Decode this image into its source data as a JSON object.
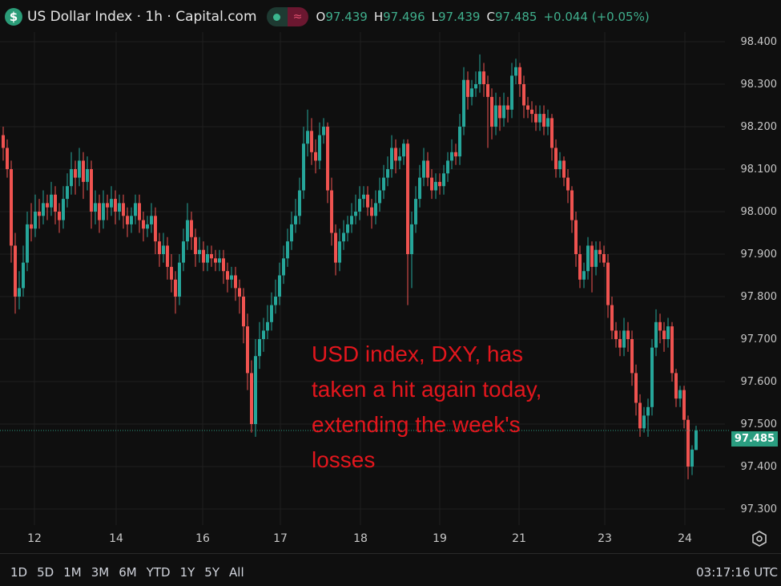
{
  "header": {
    "symbol_icon": "dollar-icon",
    "title": "US Dollar Index · 1h · Capital.com",
    "ohlc": {
      "o_label": "O",
      "o": "97.439",
      "h_label": "H",
      "h": "97.496",
      "l_label": "L",
      "l": "97.439",
      "c_label": "C",
      "c": "97.485",
      "change": "+0.044 (+0.05%)"
    }
  },
  "annotation": {
    "lines": [
      "USD index, DXY, has",
      "taken a hit again today,",
      "extending the week's",
      "losses"
    ]
  },
  "time_ranges": [
    "1D",
    "5D",
    "1M",
    "3M",
    "6M",
    "YTD",
    "1Y",
    "5Y",
    "All"
  ],
  "clock": "03:17:16 UTC",
  "colors": {
    "up": "#26a69a",
    "down": "#ef5350",
    "background": "#0f0f0f",
    "grid": "#1f1f1f",
    "annotation": "#e3161d"
  },
  "chart_data": {
    "type": "candlestick",
    "title": "US Dollar Index · 1h · Capital.com",
    "ylim": [
      97.25,
      98.45
    ],
    "y_ticks": [
      "98.400",
      "98.300",
      "98.200",
      "98.100",
      "98.000",
      "97.900",
      "97.800",
      "97.700",
      "97.600",
      "97.500",
      "97.400",
      "97.300"
    ],
    "x_ticks": [
      "12",
      "14",
      "16",
      "17",
      "18",
      "19",
      "21",
      "23",
      "24"
    ],
    "last_price": "97.485",
    "grid": true,
    "candles": [
      [
        98.18,
        98.2,
        98.12,
        98.15
      ],
      [
        98.15,
        98.17,
        98.08,
        98.1
      ],
      [
        98.1,
        98.12,
        97.88,
        97.92
      ],
      [
        97.92,
        97.95,
        97.76,
        97.8
      ],
      [
        97.8,
        97.86,
        97.77,
        97.82
      ],
      [
        97.82,
        97.92,
        97.8,
        97.88
      ],
      [
        97.88,
        98.0,
        97.86,
        97.97
      ],
      [
        97.97,
        98.02,
        97.93,
        97.96
      ],
      [
        97.96,
        98.04,
        97.94,
        98.0
      ],
      [
        98.0,
        98.03,
        97.96,
        97.99
      ],
      [
        97.99,
        98.05,
        97.97,
        98.02
      ],
      [
        98.02,
        98.04,
        97.98,
        98.01
      ],
      [
        98.01,
        98.07,
        97.99,
        98.04
      ],
      [
        98.04,
        98.06,
        97.97,
        98.0
      ],
      [
        98.0,
        98.02,
        97.95,
        97.98
      ],
      [
        97.98,
        98.06,
        97.96,
        98.03
      ],
      [
        98.03,
        98.09,
        98.01,
        98.06
      ],
      [
        98.06,
        98.14,
        98.04,
        98.1
      ],
      [
        98.1,
        98.12,
        98.04,
        98.08
      ],
      [
        98.08,
        98.15,
        98.06,
        98.12
      ],
      [
        98.12,
        98.14,
        98.03,
        98.07
      ],
      [
        98.07,
        98.13,
        98.05,
        98.1
      ],
      [
        98.1,
        98.12,
        97.96,
        98.0
      ],
      [
        98.0,
        98.05,
        97.97,
        98.02
      ],
      [
        98.02,
        98.04,
        97.95,
        97.98
      ],
      [
        97.98,
        98.05,
        97.96,
        98.02
      ],
      [
        98.02,
        98.04,
        97.98,
        98.01
      ],
      [
        98.01,
        98.06,
        97.99,
        98.03
      ],
      [
        98.03,
        98.05,
        97.97,
        98.0
      ],
      [
        98.0,
        98.04,
        97.98,
        98.02
      ],
      [
        98.02,
        98.04,
        97.96,
        97.99
      ],
      [
        97.99,
        98.01,
        97.94,
        97.97
      ],
      [
        97.97,
        98.01,
        97.95,
        97.99
      ],
      [
        97.99,
        98.04,
        97.97,
        98.02
      ],
      [
        98.02,
        98.04,
        97.95,
        97.98
      ],
      [
        97.98,
        98.0,
        97.93,
        97.96
      ],
      [
        97.96,
        97.99,
        97.94,
        97.97
      ],
      [
        97.97,
        98.02,
        97.95,
        97.99
      ],
      [
        97.99,
        98.01,
        97.9,
        97.93
      ],
      [
        97.93,
        97.95,
        97.87,
        97.9
      ],
      [
        97.9,
        97.95,
        97.88,
        97.92
      ],
      [
        97.92,
        97.94,
        97.84,
        97.87
      ],
      [
        97.87,
        97.9,
        97.81,
        97.84
      ],
      [
        97.84,
        97.86,
        97.76,
        97.8
      ],
      [
        97.8,
        97.9,
        97.78,
        97.88
      ],
      [
        97.88,
        97.96,
        97.86,
        97.93
      ],
      [
        97.93,
        98.02,
        97.91,
        97.98
      ],
      [
        97.98,
        98.0,
        97.91,
        97.94
      ],
      [
        97.94,
        97.96,
        97.87,
        97.9
      ],
      [
        97.9,
        97.94,
        97.88,
        97.91
      ],
      [
        97.91,
        97.93,
        97.86,
        97.88
      ],
      [
        97.88,
        97.92,
        97.86,
        97.9
      ],
      [
        97.9,
        97.92,
        97.87,
        97.89
      ],
      [
        97.89,
        97.91,
        97.86,
        97.88
      ],
      [
        97.88,
        97.91,
        97.86,
        97.89
      ],
      [
        97.89,
        97.91,
        97.83,
        97.86
      ],
      [
        97.86,
        97.88,
        97.81,
        97.84
      ],
      [
        97.84,
        97.87,
        97.82,
        97.85
      ],
      [
        97.85,
        97.87,
        97.79,
        97.82
      ],
      [
        97.82,
        97.84,
        97.76,
        97.8
      ],
      [
        97.8,
        97.82,
        97.69,
        97.73
      ],
      [
        97.73,
        97.76,
        97.58,
        97.62
      ],
      [
        97.62,
        97.65,
        97.48,
        97.5
      ],
      [
        97.5,
        97.7,
        97.47,
        97.66
      ],
      [
        97.66,
        97.74,
        97.63,
        97.7
      ],
      [
        97.7,
        97.75,
        97.67,
        97.72
      ],
      [
        97.72,
        97.78,
        97.7,
        97.74
      ],
      [
        97.74,
        97.81,
        97.72,
        97.78
      ],
      [
        97.78,
        97.84,
        97.76,
        97.8
      ],
      [
        97.8,
        97.88,
        97.78,
        97.85
      ],
      [
        97.85,
        97.92,
        97.83,
        97.89
      ],
      [
        97.89,
        97.96,
        97.87,
        97.93
      ],
      [
        97.93,
        98.0,
        97.91,
        97.97
      ],
      [
        97.97,
        98.03,
        97.95,
        97.99
      ],
      [
        97.99,
        98.08,
        97.97,
        98.05
      ],
      [
        98.05,
        98.2,
        98.03,
        98.16
      ],
      [
        98.16,
        98.24,
        98.13,
        98.19
      ],
      [
        98.19,
        98.22,
        98.11,
        98.14
      ],
      [
        98.14,
        98.17,
        98.09,
        98.12
      ],
      [
        98.12,
        98.21,
        98.1,
        98.18
      ],
      [
        98.18,
        98.22,
        98.16,
        98.2
      ],
      [
        98.2,
        98.21,
        98.02,
        98.05
      ],
      [
        98.05,
        98.08,
        97.92,
        97.95
      ],
      [
        97.95,
        97.97,
        97.85,
        97.88
      ],
      [
        97.88,
        97.96,
        97.86,
        97.93
      ],
      [
        97.93,
        97.98,
        97.91,
        97.95
      ],
      [
        97.95,
        97.99,
        97.93,
        97.97
      ],
      [
        97.97,
        98.02,
        97.95,
        97.99
      ],
      [
        97.99,
        98.04,
        97.97,
        98.0
      ],
      [
        98.0,
        98.06,
        97.98,
        98.03
      ],
      [
        98.03,
        98.06,
        98.01,
        98.04
      ],
      [
        98.04,
        98.06,
        97.99,
        98.01
      ],
      [
        98.01,
        98.03,
        97.96,
        97.99
      ],
      [
        97.99,
        98.05,
        97.97,
        98.02
      ],
      [
        98.02,
        98.08,
        98.0,
        98.05
      ],
      [
        98.05,
        98.11,
        98.03,
        98.08
      ],
      [
        98.08,
        98.13,
        98.06,
        98.1
      ],
      [
        98.1,
        98.18,
        98.08,
        98.15
      ],
      [
        98.15,
        98.17,
        98.09,
        98.12
      ],
      [
        98.12,
        98.15,
        98.1,
        98.13
      ],
      [
        98.13,
        98.17,
        98.11,
        98.16
      ],
      [
        98.16,
        98.17,
        97.78,
        97.9
      ],
      [
        97.9,
        98.0,
        97.82,
        97.97
      ],
      [
        97.97,
        98.06,
        97.95,
        98.03
      ],
      [
        98.03,
        98.11,
        98.01,
        98.08
      ],
      [
        98.08,
        98.15,
        98.06,
        98.12
      ],
      [
        98.12,
        98.14,
        98.06,
        98.08
      ],
      [
        98.08,
        98.1,
        98.03,
        98.05
      ],
      [
        98.05,
        98.09,
        98.03,
        98.07
      ],
      [
        98.07,
        98.09,
        98.04,
        98.06
      ],
      [
        98.06,
        98.11,
        98.04,
        98.09
      ],
      [
        98.09,
        98.14,
        98.07,
        98.12
      ],
      [
        98.12,
        98.17,
        98.1,
        98.14
      ],
      [
        98.14,
        98.16,
        98.11,
        98.13
      ],
      [
        98.13,
        98.23,
        98.11,
        98.2
      ],
      [
        98.2,
        98.34,
        98.18,
        98.31
      ],
      [
        98.31,
        98.33,
        98.24,
        98.27
      ],
      [
        98.27,
        98.31,
        98.25,
        98.29
      ],
      [
        98.29,
        98.33,
        98.27,
        98.3
      ],
      [
        98.3,
        98.37,
        98.28,
        98.33
      ],
      [
        98.33,
        98.35,
        98.27,
        98.3
      ],
      [
        98.3,
        98.32,
        98.15,
        98.27
      ],
      [
        98.27,
        98.29,
        98.17,
        98.2
      ],
      [
        98.2,
        98.28,
        98.18,
        98.25
      ],
      [
        98.25,
        98.27,
        98.19,
        98.22
      ],
      [
        98.22,
        98.28,
        98.2,
        98.25
      ],
      [
        98.25,
        98.27,
        98.21,
        98.24
      ],
      [
        98.24,
        98.35,
        98.22,
        98.32
      ],
      [
        98.32,
        98.36,
        98.3,
        98.34
      ],
      [
        98.34,
        98.35,
        98.27,
        98.3
      ],
      [
        98.3,
        98.32,
        98.22,
        98.25
      ],
      [
        98.25,
        98.27,
        98.22,
        98.24
      ],
      [
        98.24,
        98.26,
        98.21,
        98.23
      ],
      [
        98.23,
        98.25,
        98.19,
        98.21
      ],
      [
        98.21,
        98.25,
        98.19,
        98.23
      ],
      [
        98.23,
        98.25,
        98.18,
        98.2
      ],
      [
        98.2,
        98.24,
        98.18,
        98.22
      ],
      [
        98.22,
        98.23,
        98.12,
        98.15
      ],
      [
        98.15,
        98.17,
        98.08,
        98.1
      ],
      [
        98.1,
        98.14,
        98.08,
        98.12
      ],
      [
        98.12,
        98.13,
        98.06,
        98.08
      ],
      [
        98.08,
        98.1,
        98.02,
        98.05
      ],
      [
        98.05,
        98.06,
        97.95,
        97.98
      ],
      [
        97.98,
        98.0,
        97.87,
        97.9
      ],
      [
        97.9,
        97.92,
        97.82,
        97.84
      ],
      [
        97.84,
        97.88,
        97.82,
        97.86
      ],
      [
        97.86,
        97.94,
        97.84,
        97.92
      ],
      [
        97.92,
        97.93,
        97.81,
        97.87
      ],
      [
        97.87,
        97.93,
        97.85,
        97.91
      ],
      [
        97.91,
        97.93,
        97.88,
        97.9
      ],
      [
        97.9,
        97.92,
        97.87,
        97.88
      ],
      [
        97.88,
        97.9,
        97.75,
        97.78
      ],
      [
        97.78,
        97.8,
        97.7,
        97.72
      ],
      [
        97.72,
        97.74,
        97.68,
        97.7
      ],
      [
        97.7,
        97.72,
        97.66,
        97.68
      ],
      [
        97.68,
        97.75,
        97.66,
        97.72
      ],
      [
        97.72,
        97.74,
        97.67,
        97.7
      ],
      [
        97.7,
        97.72,
        97.59,
        97.62
      ],
      [
        97.62,
        97.64,
        97.52,
        97.55
      ],
      [
        97.55,
        97.57,
        97.47,
        97.49
      ],
      [
        97.49,
        97.54,
        97.48,
        97.52
      ],
      [
        97.52,
        97.56,
        97.47,
        97.54
      ],
      [
        97.54,
        97.7,
        97.52,
        97.68
      ],
      [
        97.68,
        97.77,
        97.66,
        97.74
      ],
      [
        97.74,
        97.76,
        97.69,
        97.72
      ],
      [
        97.72,
        97.74,
        97.67,
        97.7
      ],
      [
        97.7,
        97.75,
        97.68,
        97.73
      ],
      [
        97.73,
        97.74,
        97.6,
        97.62
      ],
      [
        97.62,
        97.63,
        97.54,
        97.56
      ],
      [
        97.56,
        97.59,
        97.54,
        97.58
      ],
      [
        97.58,
        97.59,
        97.49,
        97.51
      ],
      [
        97.51,
        97.52,
        97.37,
        97.4
      ],
      [
        97.4,
        97.45,
        97.38,
        97.44
      ],
      [
        97.439,
        97.496,
        97.439,
        97.485
      ]
    ]
  }
}
